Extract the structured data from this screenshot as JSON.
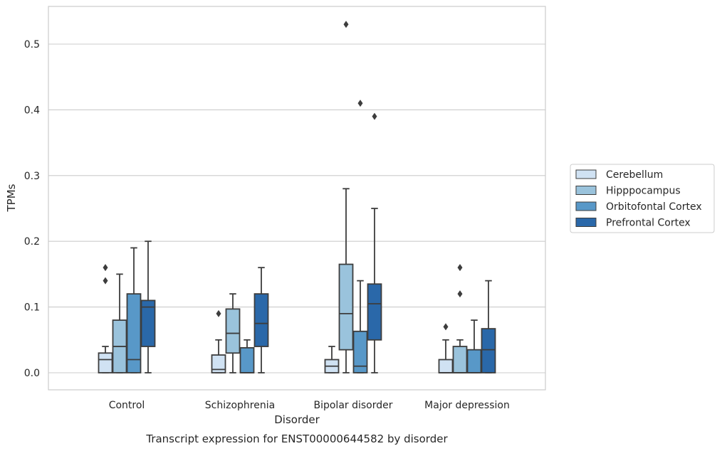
{
  "chart_data": {
    "type": "box",
    "title": "",
    "caption": "Transcript expression for ENST00000644582 by disorder",
    "xlabel": "Disorder",
    "ylabel": "TPMs",
    "ylim": [
      -0.025,
      0.557
    ],
    "yticks": [
      "0.0",
      "0.1",
      "0.2",
      "0.3",
      "0.4",
      "0.5"
    ],
    "ytick_values": [
      0.0,
      0.1,
      0.2,
      0.3,
      0.4,
      0.5
    ],
    "grid": "horizontal",
    "legend_position": "right",
    "categories": [
      "Control",
      "Schizophrenia",
      "Bipolar disorder",
      "Major depression"
    ],
    "series": [
      {
        "name": "Cerebellum",
        "color": "#d0e2f3",
        "boxes": [
          {
            "whisker_low": 0.0,
            "q1": 0.0,
            "median": 0.02,
            "q3": 0.03,
            "whisker_high": 0.04,
            "outliers": [
              0.14,
              0.16
            ]
          },
          {
            "whisker_low": 0.0,
            "q1": 0.0,
            "median": 0.005,
            "q3": 0.027,
            "whisker_high": 0.05,
            "outliers": [
              0.09
            ]
          },
          {
            "whisker_low": 0.0,
            "q1": 0.0,
            "median": 0.01,
            "q3": 0.02,
            "whisker_high": 0.04,
            "outliers": []
          },
          {
            "whisker_low": 0.0,
            "q1": 0.0,
            "median": 0.0,
            "q3": 0.02,
            "whisker_high": 0.05,
            "outliers": [
              0.07
            ]
          }
        ]
      },
      {
        "name": "Hipppocampus",
        "color": "#9ac3dc",
        "boxes": [
          {
            "whisker_low": 0.0,
            "q1": 0.0,
            "median": 0.04,
            "q3": 0.08,
            "whisker_high": 0.15,
            "outliers": []
          },
          {
            "whisker_low": 0.0,
            "q1": 0.03,
            "median": 0.06,
            "q3": 0.097,
            "whisker_high": 0.12,
            "outliers": []
          },
          {
            "whisker_low": 0.0,
            "q1": 0.035,
            "median": 0.09,
            "q3": 0.165,
            "whisker_high": 0.28,
            "outliers": [
              0.53
            ]
          },
          {
            "whisker_low": 0.0,
            "q1": 0.0,
            "median": 0.0,
            "q3": 0.04,
            "whisker_high": 0.05,
            "outliers": [
              0.12,
              0.16
            ]
          }
        ]
      },
      {
        "name": "Orbitofontal Cortex",
        "color": "#5898c8",
        "boxes": [
          {
            "whisker_low": 0.0,
            "q1": 0.0,
            "median": 0.02,
            "q3": 0.12,
            "whisker_high": 0.19,
            "outliers": []
          },
          {
            "whisker_low": 0.0,
            "q1": 0.0,
            "median": 0.0,
            "q3": 0.038,
            "whisker_high": 0.05,
            "outliers": []
          },
          {
            "whisker_low": 0.0,
            "q1": 0.0,
            "median": 0.01,
            "q3": 0.063,
            "whisker_high": 0.14,
            "outliers": [
              0.41
            ]
          },
          {
            "whisker_low": 0.0,
            "q1": 0.0,
            "median": 0.0,
            "q3": 0.035,
            "whisker_high": 0.08,
            "outliers": []
          }
        ]
      },
      {
        "name": "Prefrontal Cortex",
        "color": "#2a68a9",
        "boxes": [
          {
            "whisker_low": 0.0,
            "q1": 0.04,
            "median": 0.1,
            "q3": 0.11,
            "whisker_high": 0.2,
            "outliers": []
          },
          {
            "whisker_low": 0.0,
            "q1": 0.04,
            "median": 0.075,
            "q3": 0.12,
            "whisker_high": 0.16,
            "outliers": []
          },
          {
            "whisker_low": 0.0,
            "q1": 0.05,
            "median": 0.105,
            "q3": 0.135,
            "whisker_high": 0.25,
            "outliers": [
              0.39
            ]
          },
          {
            "whisker_low": 0.0,
            "q1": 0.0,
            "median": 0.035,
            "q3": 0.067,
            "whisker_high": 0.14,
            "outliers": []
          }
        ]
      }
    ]
  }
}
